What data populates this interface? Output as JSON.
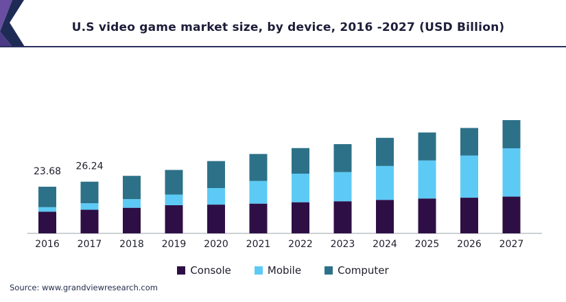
{
  "title": "U.S video game market size, by device, 2016 -2027 (USD Billion)",
  "source": "Source: www.grandviewresearch.com",
  "colors": {
    "console": "#2e0f45",
    "mobile": "#5ccaf5",
    "computer": "#2d7188",
    "title_rule": "#2a2f5e",
    "logo_purple": "#6a4ea2",
    "logo_navy": "#1e2b55"
  },
  "chart_data": {
    "type": "bar",
    "stacked": true,
    "title": "U.S video game market size, by device, 2016 -2027 (USD Billion)",
    "xlabel": "",
    "ylabel": "",
    "ylim": [
      0,
      80
    ],
    "categories": [
      "2016",
      "2017",
      "2018",
      "2019",
      "2020",
      "2021",
      "2022",
      "2023",
      "2024",
      "2025",
      "2026",
      "2027"
    ],
    "series": [
      {
        "name": "Console",
        "color": "#2e0f45",
        "values": [
          11.0,
          12.0,
          13.0,
          14.3,
          14.6,
          15.1,
          15.8,
          16.3,
          17.0,
          17.7,
          18.1,
          18.7
        ]
      },
      {
        "name": "Mobile",
        "color": "#5ccaf5",
        "values": [
          2.3,
          3.3,
          4.4,
          5.4,
          8.4,
          11.5,
          14.5,
          14.8,
          17.2,
          19.3,
          21.4,
          24.5
        ]
      },
      {
        "name": "Computer",
        "color": "#2d7188",
        "values": [
          10.38,
          10.94,
          11.8,
          12.5,
          13.7,
          13.7,
          13.0,
          14.2,
          14.3,
          14.2,
          14.0,
          14.3
        ]
      }
    ],
    "totals_labels": [
      {
        "category": "2016",
        "text": "23.68"
      },
      {
        "category": "2017",
        "text": "26.24"
      }
    ],
    "legend": [
      "Console",
      "Mobile",
      "Computer"
    ],
    "legend_position": "bottom",
    "grid": false
  }
}
